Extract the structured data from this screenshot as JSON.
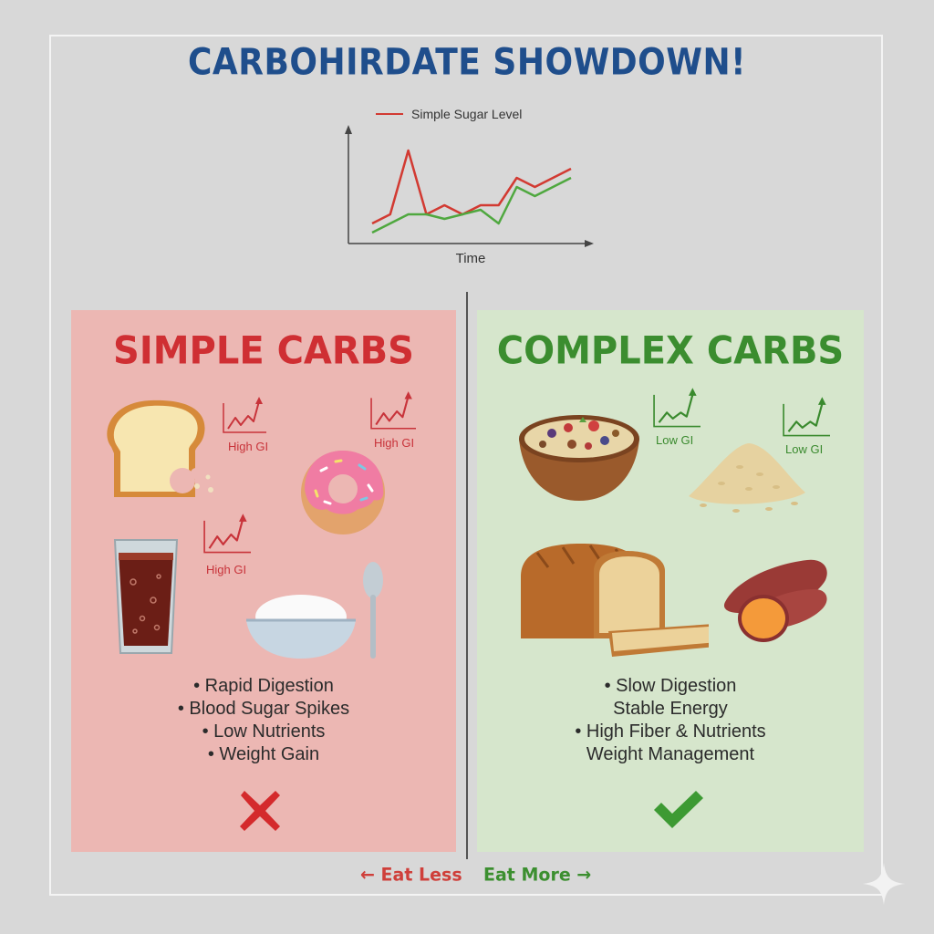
{
  "title": "CARBOHIRDATE SHOWDOWN!",
  "chart_data": {
    "type": "line",
    "title": "",
    "xlabel": "Time",
    "ylabel": "",
    "legend": "top",
    "series": [
      {
        "name": "Simple Sugar Level",
        "color": "#d23a32",
        "values": [
          2,
          3,
          10,
          3,
          4,
          3,
          4,
          4,
          7,
          6,
          7,
          8
        ]
      },
      {
        "name": "",
        "color": "#4fa83f",
        "values": [
          1,
          2,
          3,
          3,
          2.5,
          3,
          3.5,
          2,
          6,
          5,
          6,
          7
        ]
      }
    ],
    "ylim": [
      0,
      12
    ]
  },
  "simple": {
    "title": "SIMPLE CARBS",
    "gi_labels": [
      "High GI",
      "High GI",
      "High GI"
    ],
    "bullets": [
      "• Rapid Digestion",
      "• Blood Sugar Spikes",
      "• Low Nutrients",
      "• Weight Gain"
    ],
    "mark": "cross-icon"
  },
  "complex": {
    "title": "COMPLEX CARBS",
    "gi_labels": [
      "Low GI",
      "Low GI"
    ],
    "bullets": [
      "• Slow Digestion",
      "Stable Energy",
      "• High Fiber & Nutrients",
      "Weight Management"
    ],
    "mark": "checkmark-icon"
  },
  "footer": {
    "eat_less": "Eat Less",
    "eat_more": "Eat More"
  },
  "colors": {
    "simple": "#cf2f33",
    "complex": "#3b8d2f",
    "title": "#1f4e8c"
  }
}
